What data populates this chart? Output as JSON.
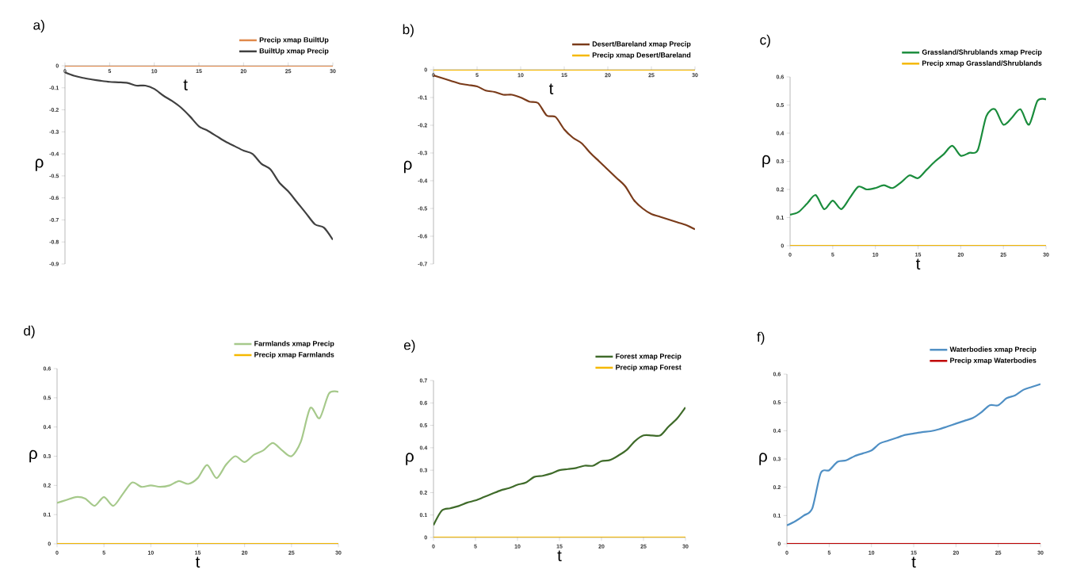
{
  "chart_data": [
    {
      "type": "line",
      "title": "a)",
      "xlabel": "t",
      "ylabel": "ρ",
      "x": [
        0,
        1,
        2,
        3,
        4,
        5,
        6,
        7,
        8,
        9,
        10,
        11,
        12,
        13,
        14,
        15,
        16,
        17,
        18,
        19,
        20,
        21,
        22,
        23,
        24,
        25,
        26,
        27,
        28,
        29,
        30
      ],
      "xlim": [
        0,
        30
      ],
      "xticks": [
        0,
        5,
        10,
        15,
        20,
        25,
        30
      ],
      "ylim": [
        -0.9,
        0
      ],
      "yticks": [
        0,
        -0.1,
        -0.2,
        -0.3,
        -0.4,
        -0.5,
        -0.6,
        -0.7,
        -0.8,
        -0.9
      ],
      "legend": "top right",
      "series": [
        {
          "name": "Precip xmap BuiltUp",
          "color": "#e08a4c",
          "values": [
            0,
            0,
            0,
            0,
            0,
            0,
            0,
            0,
            0,
            0,
            0,
            0,
            0,
            0,
            0,
            0,
            0,
            0,
            0,
            0,
            0,
            0,
            0,
            0,
            0,
            0,
            0,
            0,
            0,
            0,
            0
          ]
        },
        {
          "name": "BuiltUp xmap Precip",
          "color": "#404040",
          "values": [
            -0.03,
            -0.045,
            -0.055,
            -0.062,
            -0.068,
            -0.073,
            -0.075,
            -0.078,
            -0.09,
            -0.09,
            -0.105,
            -0.135,
            -0.16,
            -0.19,
            -0.23,
            -0.275,
            -0.295,
            -0.32,
            -0.345,
            -0.365,
            -0.385,
            -0.4,
            -0.445,
            -0.47,
            -0.53,
            -0.57,
            -0.62,
            -0.67,
            -0.72,
            -0.735,
            -0.79
          ]
        }
      ]
    },
    {
      "type": "line",
      "title": "b)",
      "xlabel": "t",
      "ylabel": "ρ",
      "x": [
        0,
        1,
        2,
        3,
        4,
        5,
        6,
        7,
        8,
        9,
        10,
        11,
        12,
        13,
        14,
        15,
        16,
        17,
        18,
        19,
        20,
        21,
        22,
        23,
        24,
        25,
        26,
        27,
        28,
        29,
        30
      ],
      "xlim": [
        0,
        30
      ],
      "xticks": [
        0,
        5,
        10,
        15,
        20,
        25,
        30
      ],
      "ylim": [
        -0.7,
        0
      ],
      "yticks": [
        0,
        -0.1,
        -0.2,
        -0.3,
        -0.4,
        -0.5,
        -0.6,
        -0.7
      ],
      "legend": "top right",
      "series": [
        {
          "name": "Desert/Bareland xmap Precip",
          "color": "#7a3b1a",
          "values": [
            -0.02,
            -0.03,
            -0.04,
            -0.05,
            -0.055,
            -0.06,
            -0.075,
            -0.08,
            -0.09,
            -0.09,
            -0.1,
            -0.115,
            -0.12,
            -0.165,
            -0.17,
            -0.215,
            -0.245,
            -0.265,
            -0.3,
            -0.33,
            -0.36,
            -0.39,
            -0.42,
            -0.47,
            -0.5,
            -0.52,
            -0.53,
            -0.54,
            -0.55,
            -0.56,
            -0.575
          ]
        },
        {
          "name": "Precip xmap Desert/Bareland",
          "color": "#f5b800",
          "values": [
            0,
            0,
            0,
            0,
            0,
            0,
            0,
            0,
            0,
            0,
            0,
            0,
            0,
            0,
            0,
            0,
            0,
            0,
            0,
            0,
            0,
            0,
            0,
            0,
            0,
            0,
            0,
            0,
            0,
            0,
            0
          ]
        }
      ]
    },
    {
      "type": "line",
      "title": "c)",
      "xlabel": "t",
      "ylabel": "ρ",
      "x": [
        0,
        1,
        2,
        3,
        4,
        5,
        6,
        7,
        8,
        9,
        10,
        11,
        12,
        13,
        14,
        15,
        16,
        17,
        18,
        19,
        20,
        21,
        22,
        23,
        24,
        25,
        26,
        27,
        28,
        29,
        30
      ],
      "xlim": [
        0,
        30
      ],
      "xticks": [
        0,
        5,
        10,
        15,
        20,
        25,
        30
      ],
      "ylim": [
        0,
        0.6
      ],
      "yticks": [
        0,
        0.1,
        0.2,
        0.3,
        0.4,
        0.5,
        0.6
      ],
      "legend": "top right",
      "series": [
        {
          "name": "Grassland/Shrublands xmap Precip",
          "color": "#1a8c3c",
          "values": [
            0.11,
            0.12,
            0.15,
            0.18,
            0.13,
            0.16,
            0.13,
            0.17,
            0.21,
            0.2,
            0.205,
            0.215,
            0.205,
            0.225,
            0.25,
            0.24,
            0.27,
            0.3,
            0.325,
            0.355,
            0.32,
            0.33,
            0.34,
            0.46,
            0.485,
            0.43,
            0.455,
            0.485,
            0.43,
            0.515,
            0.52
          ]
        },
        {
          "name": "Precip xmap Grassland/Shrublands",
          "color": "#f5b800",
          "values": [
            0,
            0,
            0,
            0,
            0,
            0,
            0,
            0,
            0,
            0,
            0,
            0,
            0,
            0,
            0,
            0,
            0,
            0,
            0,
            0,
            0,
            0,
            0,
            0,
            0,
            0,
            0,
            0,
            0,
            0,
            0
          ]
        }
      ]
    },
    {
      "type": "line",
      "title": "d)",
      "xlabel": "t",
      "ylabel": "ρ",
      "x": [
        0,
        1,
        2,
        3,
        4,
        5,
        6,
        7,
        8,
        9,
        10,
        11,
        12,
        13,
        14,
        15,
        16,
        17,
        18,
        19,
        20,
        21,
        22,
        23,
        24,
        25,
        26,
        27,
        28,
        29,
        30
      ],
      "xlim": [
        0,
        30
      ],
      "xticks": [
        0,
        5,
        10,
        15,
        20,
        25,
        30
      ],
      "ylim": [
        0,
        0.6
      ],
      "yticks": [
        0,
        0.1,
        0.2,
        0.3,
        0.4,
        0.5,
        0.6
      ],
      "legend": "top right",
      "series": [
        {
          "name": "Farmlands xmap Precip",
          "color": "#a6c98b",
          "values": [
            0.14,
            0.15,
            0.16,
            0.155,
            0.13,
            0.16,
            0.13,
            0.17,
            0.21,
            0.195,
            0.2,
            0.195,
            0.2,
            0.215,
            0.205,
            0.225,
            0.27,
            0.225,
            0.27,
            0.3,
            0.28,
            0.305,
            0.32,
            0.345,
            0.32,
            0.3,
            0.35,
            0.465,
            0.43,
            0.515,
            0.52
          ]
        },
        {
          "name": "Precip xmap Farmlands",
          "color": "#f5b800",
          "values": [
            0,
            0,
            0,
            0,
            0,
            0,
            0,
            0,
            0,
            0,
            0,
            0,
            0,
            0,
            0,
            0,
            0,
            0,
            0,
            0,
            0,
            0,
            0,
            0,
            0,
            0,
            0,
            0,
            0,
            0,
            0
          ]
        }
      ]
    },
    {
      "type": "line",
      "title": "e)",
      "xlabel": "t",
      "ylabel": "ρ",
      "x": [
        0,
        1,
        2,
        3,
        4,
        5,
        6,
        7,
        8,
        9,
        10,
        11,
        12,
        13,
        14,
        15,
        16,
        17,
        18,
        19,
        20,
        21,
        22,
        23,
        24,
        25,
        26,
        27,
        28,
        29,
        30
      ],
      "xlim": [
        0,
        30
      ],
      "xticks": [
        0,
        5,
        10,
        15,
        20,
        25,
        30
      ],
      "ylim": [
        0,
        0.7
      ],
      "yticks": [
        0,
        0.1,
        0.2,
        0.3,
        0.4,
        0.5,
        0.6,
        0.7
      ],
      "legend": "top right",
      "series": [
        {
          "name": "Forest xmap Precip",
          "color": "#3f6b2a",
          "values": [
            0.055,
            0.12,
            0.13,
            0.14,
            0.155,
            0.165,
            0.18,
            0.195,
            0.21,
            0.22,
            0.235,
            0.245,
            0.27,
            0.275,
            0.285,
            0.3,
            0.305,
            0.31,
            0.32,
            0.32,
            0.34,
            0.345,
            0.365,
            0.39,
            0.43,
            0.455,
            0.455,
            0.455,
            0.495,
            0.53,
            0.58
          ]
        },
        {
          "name": "Precip xmap Forest",
          "color": "#f5b800",
          "values": [
            0,
            0,
            0,
            0,
            0,
            0,
            0,
            0,
            0,
            0,
            0,
            0,
            0,
            0,
            0,
            0,
            0,
            0,
            0,
            0,
            0,
            0,
            0,
            0,
            0,
            0,
            0,
            0,
            0,
            0,
            0
          ]
        }
      ]
    },
    {
      "type": "line",
      "title": "f)",
      "xlabel": "t",
      "ylabel": "ρ",
      "x": [
        0,
        1,
        2,
        3,
        4,
        5,
        6,
        7,
        8,
        9,
        10,
        11,
        12,
        13,
        14,
        15,
        16,
        17,
        18,
        19,
        20,
        21,
        22,
        23,
        24,
        25,
        26,
        27,
        28,
        29,
        30
      ],
      "xlim": [
        0,
        30
      ],
      "xticks": [
        0,
        5,
        10,
        15,
        20,
        25,
        30
      ],
      "ylim": [
        0,
        0.6
      ],
      "yticks": [
        0,
        0.1,
        0.2,
        0.3,
        0.4,
        0.5,
        0.6
      ],
      "legend": "top right",
      "series": [
        {
          "name": "Waterbodies xmap Precip",
          "color": "#4f8fc4",
          "values": [
            0.065,
            0.08,
            0.1,
            0.125,
            0.25,
            0.26,
            0.29,
            0.295,
            0.31,
            0.32,
            0.33,
            0.355,
            0.365,
            0.375,
            0.385,
            0.39,
            0.395,
            0.398,
            0.405,
            0.415,
            0.425,
            0.435,
            0.445,
            0.465,
            0.49,
            0.49,
            0.515,
            0.525,
            0.545,
            0.555,
            0.565
          ]
        },
        {
          "name": "Precip xmap Waterbodies",
          "color": "#c00000",
          "values": [
            0,
            0,
            0,
            0,
            0,
            0,
            0,
            0,
            0,
            0,
            0,
            0,
            0,
            0,
            0,
            0,
            0,
            0,
            0,
            0,
            0,
            0,
            0,
            0,
            0,
            0,
            0,
            0,
            0,
            0,
            0
          ]
        }
      ]
    }
  ]
}
